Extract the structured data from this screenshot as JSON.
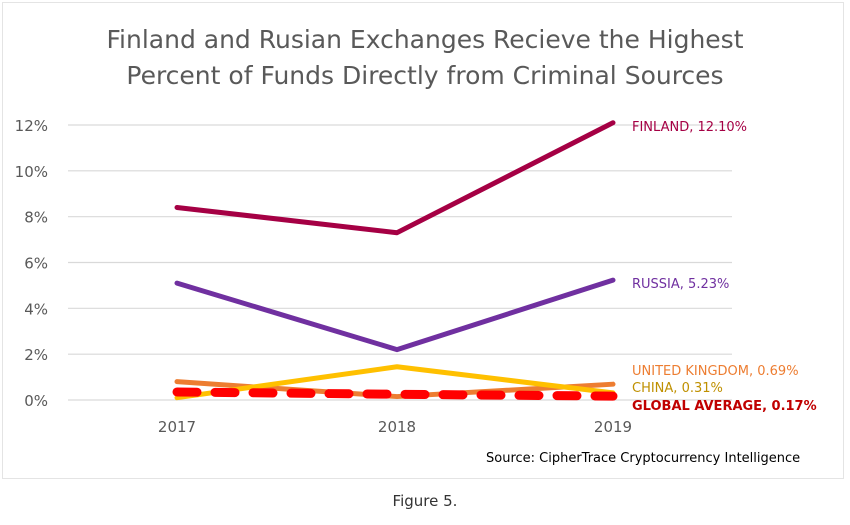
{
  "chart_data": {
    "type": "line",
    "title_line1": "Finland and Rusian Exchanges Recieve the Highest",
    "title_line2": "Percent of Funds Directly from Criminal Sources",
    "categories": [
      "2017",
      "2018",
      "2019"
    ],
    "ylim": [
      0,
      12
    ],
    "yticks": [
      "0%",
      "2%",
      "4%",
      "6%",
      "8%",
      "10%",
      "12%"
    ],
    "grid": true,
    "series": [
      {
        "name": "FINLAND",
        "values": [
          8.4,
          7.3,
          12.1
        ],
        "label": "FINLAND, 12.10%",
        "color": "#a50044",
        "labelColor": "#a50044",
        "dashed": false,
        "bold": false
      },
      {
        "name": "RUSSIA",
        "values": [
          5.1,
          2.2,
          5.23
        ],
        "label": "RUSSIA, 5.23%",
        "color": "#7030a0",
        "labelColor": "#7030a0",
        "dashed": false,
        "bold": false
      },
      {
        "name": "UNITED KINGDOM",
        "values": [
          0.8,
          0.15,
          0.69
        ],
        "label": "UNITED KINGDOM, 0.69%",
        "color": "#ed7d31",
        "labelColor": "#ed7d31",
        "dashed": false,
        "bold": false
      },
      {
        "name": "CHINA",
        "values": [
          0.1,
          1.45,
          0.31
        ],
        "label": "CHINA, 0.31%",
        "color": "#ffc000",
        "labelColor": "#bf9000",
        "dashed": false,
        "bold": false
      },
      {
        "name": "GLOBAL AVERAGE",
        "values": [
          0.35,
          0.25,
          0.17
        ],
        "label": "GLOBAL AVERAGE, 0.17%",
        "color": "#ff0000",
        "labelColor": "#c00000",
        "dashed": true,
        "bold": true
      }
    ]
  },
  "source": "Source: CipherTrace Cryptocurrency Intelligence",
  "caption": "Figure 5."
}
